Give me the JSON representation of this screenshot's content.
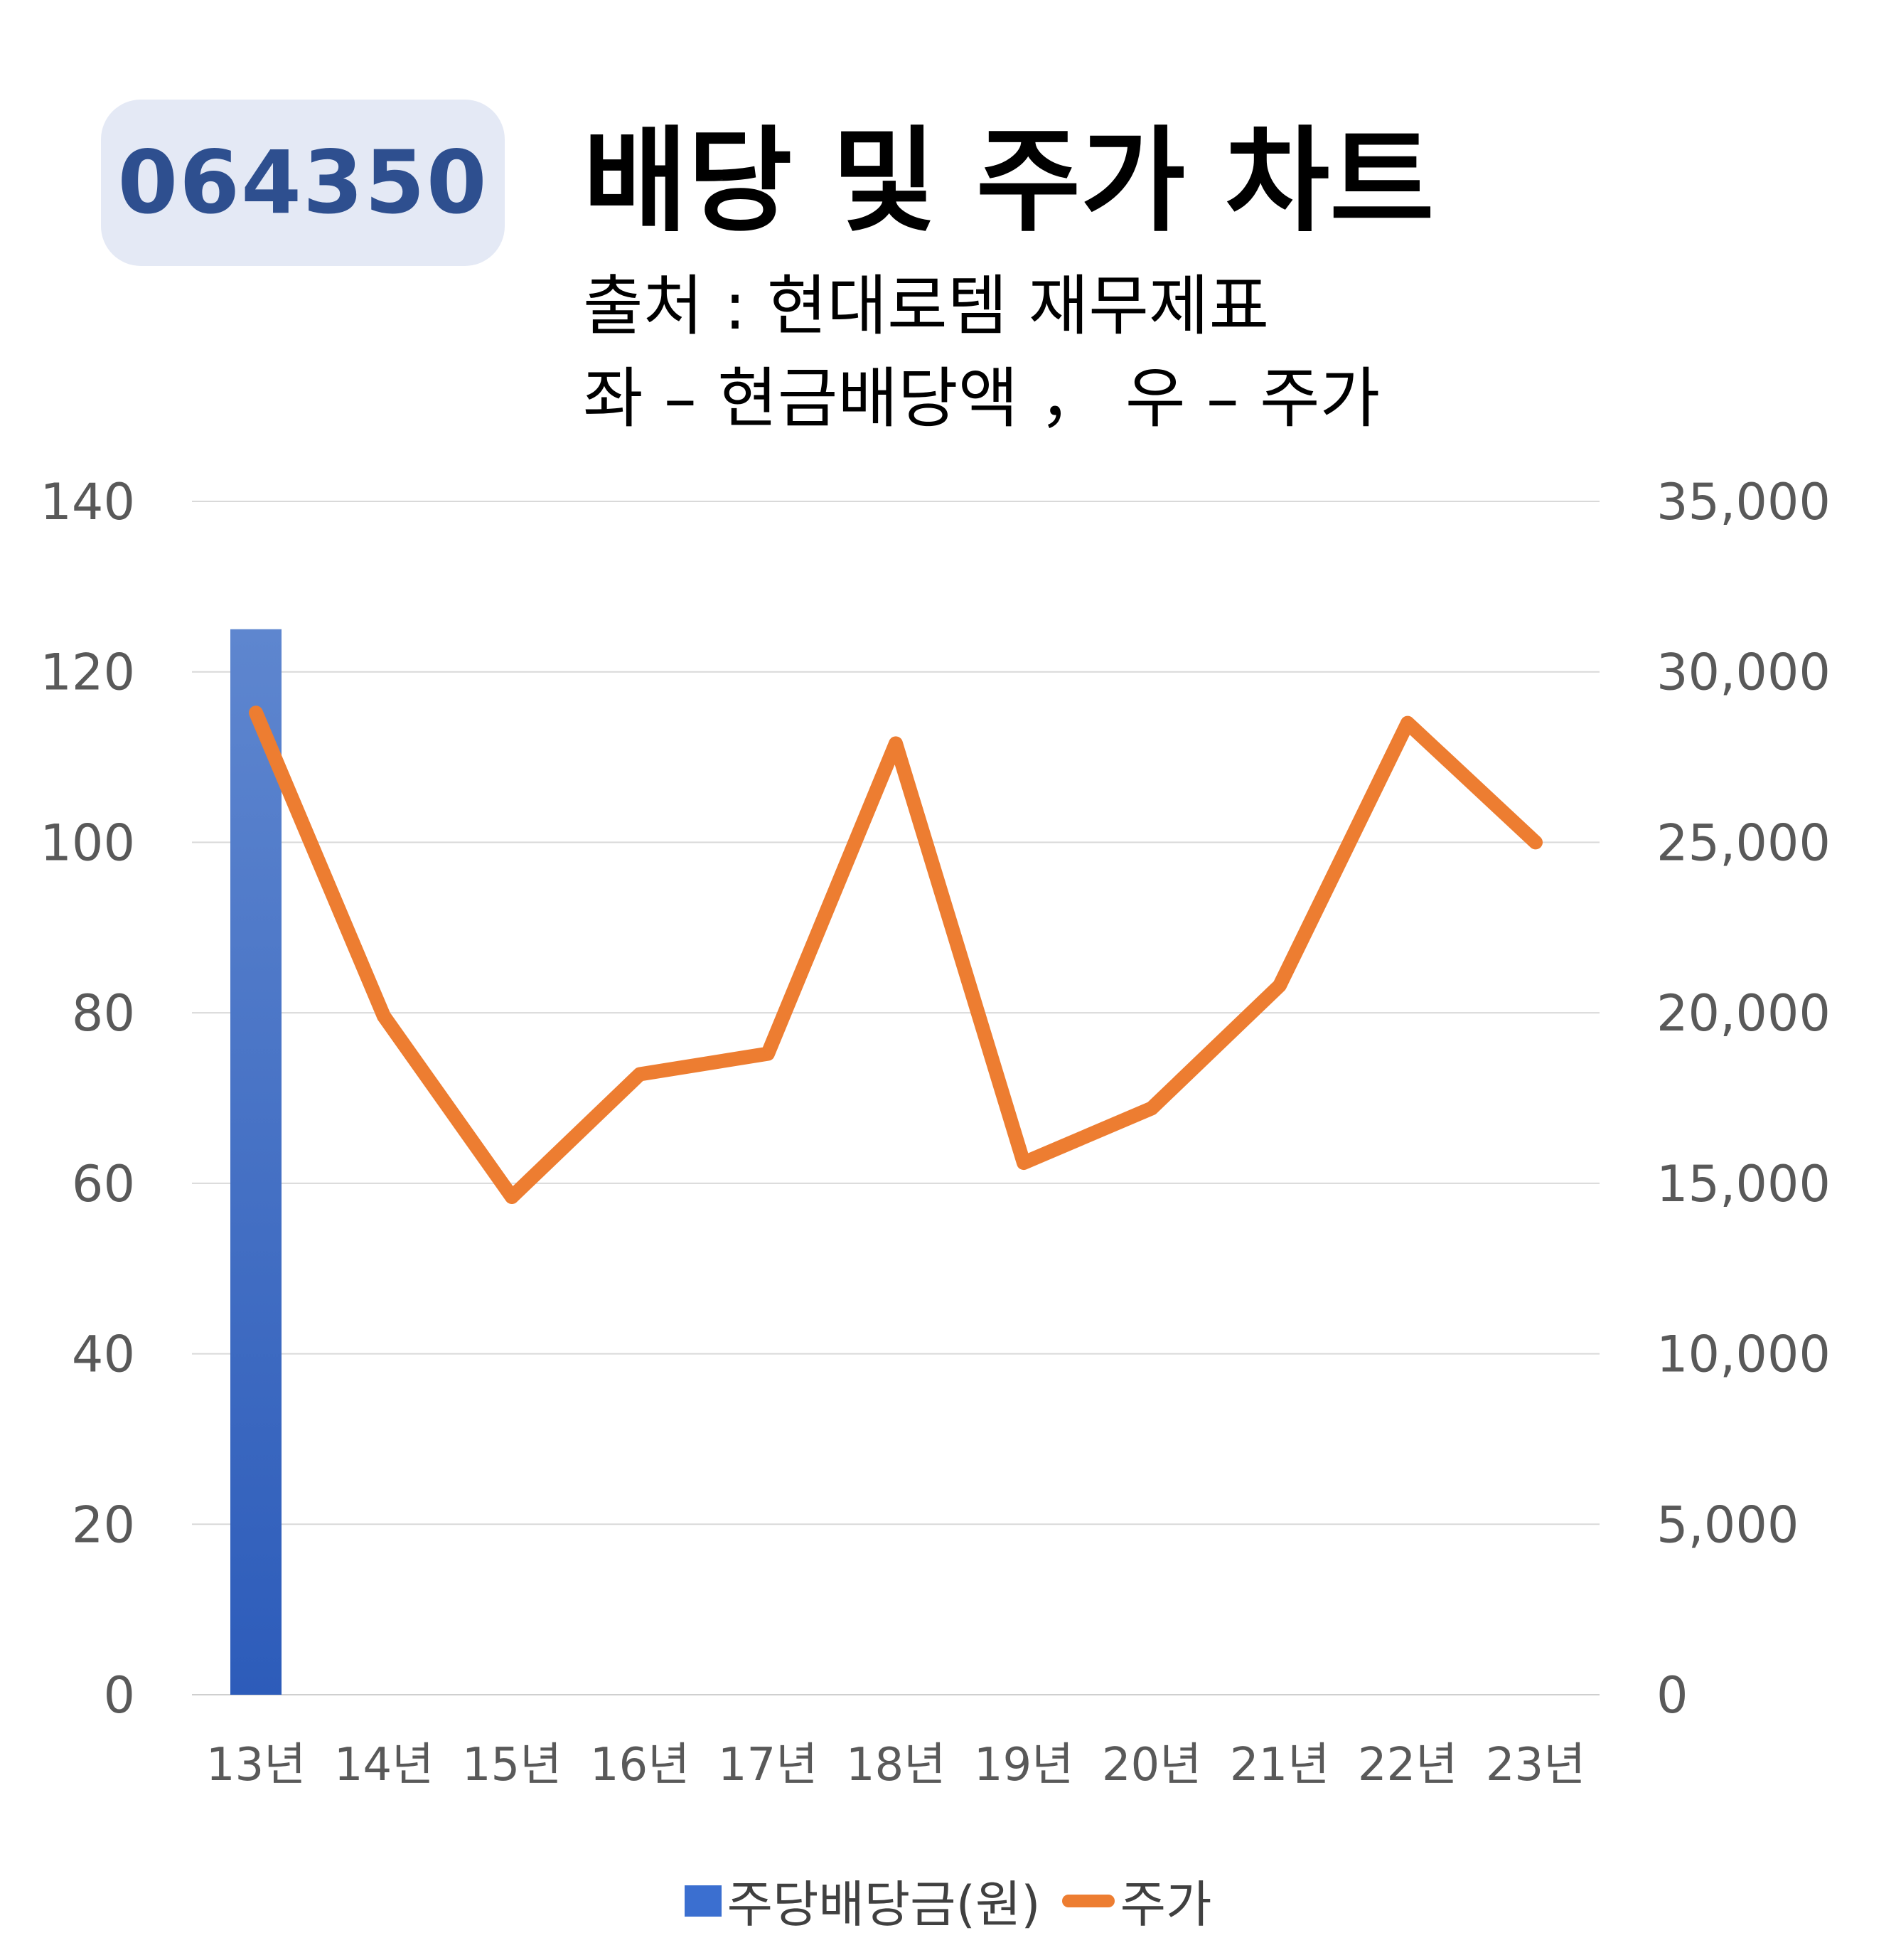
{
  "badge": {
    "code": "064350"
  },
  "header": {
    "title": "배당 및 주가 차트",
    "source": "출처 : 현대로템 재무제표",
    "axis_note": "좌 – 현금배당액 ， 우 – 주가"
  },
  "chart_data": {
    "type": "bar+line",
    "categories": [
      "13년",
      "14년",
      "15년",
      "16년",
      "17년",
      "18년",
      "19년",
      "20년",
      "21년",
      "22년",
      "23년"
    ],
    "series": [
      {
        "name": "주당배당금(원)",
        "type": "bar",
        "axis": "left",
        "values": [
          125,
          0,
          0,
          0,
          0,
          0,
          0,
          0,
          0,
          0,
          0
        ]
      },
      {
        "name": "주가",
        "type": "line",
        "axis": "right",
        "values": [
          28800,
          19900,
          14600,
          18200,
          18800,
          27900,
          15600,
          17200,
          20800,
          28500,
          25000
        ]
      }
    ],
    "left_axis": {
      "min": 0,
      "max": 140,
      "ticks": [
        "0",
        "20",
        "40",
        "60",
        "80",
        "100",
        "120",
        "140"
      ]
    },
    "right_axis": {
      "min": 0,
      "max": 35000,
      "ticks": [
        "0",
        "5,000",
        "10,000",
        "15,000",
        "20,000",
        "25,000",
        "30,000",
        "35,000"
      ]
    },
    "grid": true,
    "legend_position": "bottom",
    "colors": {
      "bar": "#3b6fd0",
      "line": "#ed7d31",
      "grid": "#d9d9d9",
      "tick": "#595959"
    }
  }
}
